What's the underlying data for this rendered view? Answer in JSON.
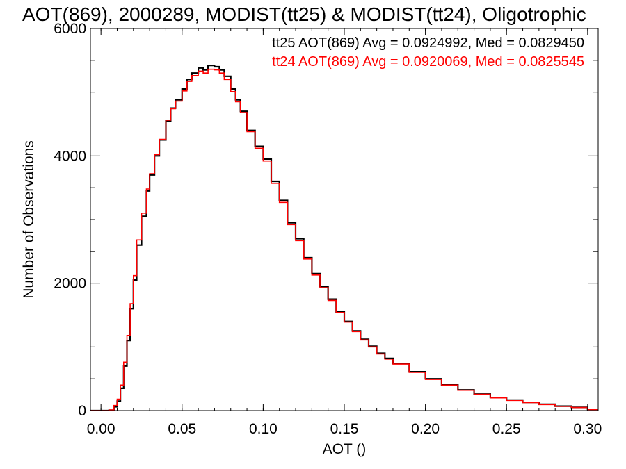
{
  "chart_data": {
    "type": "line",
    "title": "AOT(869), 2000289, MODIST(tt25) & MODIST(tt24), Oligotrophic",
    "xlabel": "AOT ()",
    "ylabel": "Number of Observations",
    "xlim": [
      -0.0065,
      0.3065
    ],
    "ylim": [
      0,
      6000
    ],
    "xticks": [
      0.0,
      0.05,
      0.1,
      0.15,
      0.2,
      0.25,
      0.3
    ],
    "xtick_labels": [
      "0.00",
      "0.05",
      "0.10",
      "0.15",
      "0.20",
      "0.25",
      "0.30"
    ],
    "yticks": [
      0,
      2000,
      4000,
      6000
    ],
    "ytick_labels": [
      "0",
      "2000",
      "4000",
      "6000"
    ],
    "step": "histogram",
    "grid": false,
    "legend": [
      {
        "text": "tt25 AOT(869) Avg = 0.0924992, Med = 0.0829450",
        "color": "#000000"
      },
      {
        "text": "tt24 AOT(869) Avg = 0.0920069, Med = 0.0825545",
        "color": "#ff0000"
      }
    ],
    "series": [
      {
        "color": "#000000",
        "x": [
          -0.0065,
          0.0,
          0.005,
          0.008,
          0.01,
          0.012,
          0.014,
          0.016,
          0.018,
          0.02,
          0.022,
          0.025,
          0.028,
          0.03,
          0.033,
          0.036,
          0.04,
          0.043,
          0.046,
          0.05,
          0.053,
          0.056,
          0.06,
          0.063,
          0.066,
          0.07,
          0.073,
          0.076,
          0.08,
          0.083,
          0.086,
          0.09,
          0.095,
          0.1,
          0.105,
          0.11,
          0.115,
          0.12,
          0.125,
          0.13,
          0.135,
          0.14,
          0.145,
          0.15,
          0.155,
          0.16,
          0.165,
          0.17,
          0.175,
          0.18,
          0.19,
          0.2,
          0.21,
          0.22,
          0.23,
          0.24,
          0.25,
          0.26,
          0.27,
          0.28,
          0.29,
          0.3,
          0.3065
        ],
        "y": [
          0,
          0,
          5,
          60,
          150,
          350,
          700,
          1100,
          1600,
          2050,
          2600,
          3050,
          3450,
          3700,
          4000,
          4250,
          4550,
          4750,
          4880,
          5050,
          5200,
          5300,
          5380,
          5350,
          5420,
          5400,
          5350,
          5250,
          5050,
          4880,
          4700,
          4400,
          4150,
          3950,
          3600,
          3300,
          2950,
          2700,
          2400,
          2150,
          1950,
          1750,
          1550,
          1400,
          1250,
          1120,
          1010,
          900,
          820,
          740,
          610,
          500,
          405,
          325,
          260,
          205,
          165,
          130,
          100,
          70,
          50,
          20,
          10
        ]
      },
      {
        "color": "#ff0000",
        "x": [
          -0.0065,
          0.0,
          0.005,
          0.008,
          0.01,
          0.012,
          0.014,
          0.016,
          0.018,
          0.02,
          0.022,
          0.025,
          0.028,
          0.03,
          0.033,
          0.036,
          0.04,
          0.043,
          0.046,
          0.05,
          0.053,
          0.056,
          0.06,
          0.063,
          0.066,
          0.07,
          0.073,
          0.076,
          0.08,
          0.083,
          0.086,
          0.09,
          0.095,
          0.1,
          0.105,
          0.11,
          0.115,
          0.12,
          0.125,
          0.13,
          0.135,
          0.14,
          0.145,
          0.15,
          0.155,
          0.16,
          0.165,
          0.17,
          0.175,
          0.18,
          0.19,
          0.2,
          0.21,
          0.22,
          0.23,
          0.24,
          0.25,
          0.26,
          0.27,
          0.28,
          0.29,
          0.3,
          0.3065
        ],
        "y": [
          0,
          0,
          10,
          80,
          180,
          400,
          760,
          1180,
          1680,
          2120,
          2680,
          3100,
          3480,
          3720,
          4020,
          4260,
          4560,
          4740,
          4860,
          5020,
          5170,
          5260,
          5330,
          5300,
          5360,
          5350,
          5300,
          5200,
          5010,
          4850,
          4680,
          4380,
          4120,
          3920,
          3570,
          3270,
          2920,
          2670,
          2380,
          2130,
          1930,
          1730,
          1540,
          1390,
          1240,
          1110,
          1000,
          890,
          810,
          730,
          600,
          490,
          400,
          320,
          255,
          200,
          160,
          125,
          95,
          68,
          48,
          18,
          8
        ]
      }
    ]
  }
}
